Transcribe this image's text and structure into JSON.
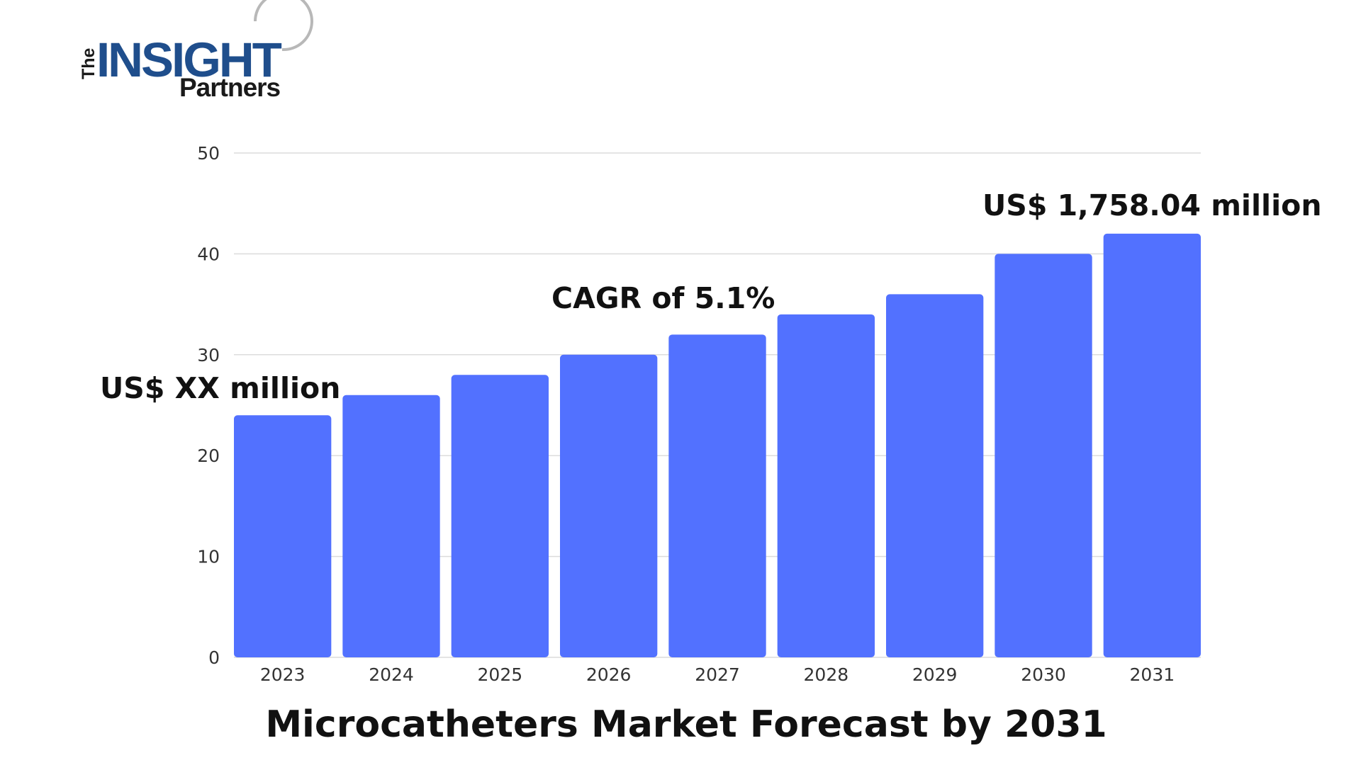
{
  "logo": {
    "the": "The",
    "insight": "INSIGHT",
    "partners": "Partners"
  },
  "chart_data": {
    "type": "bar",
    "title": "Microcatheters Market Forecast by 2031",
    "xlabel": "",
    "ylabel": "",
    "categories": [
      "2023",
      "2024",
      "2025",
      "2026",
      "2027",
      "2028",
      "2029",
      "2030",
      "2031"
    ],
    "values": [
      24,
      26,
      28,
      30,
      32,
      34,
      36,
      40,
      42
    ],
    "ylim": [
      0,
      50
    ],
    "yticks": [
      0,
      10,
      20,
      30,
      40,
      50
    ],
    "grid": true,
    "bar_color": "#5271ff",
    "annotations": {
      "start": "US$ XX million",
      "cagr": "CAGR of 5.1%",
      "end": "US$ 1,758.04 million"
    }
  }
}
